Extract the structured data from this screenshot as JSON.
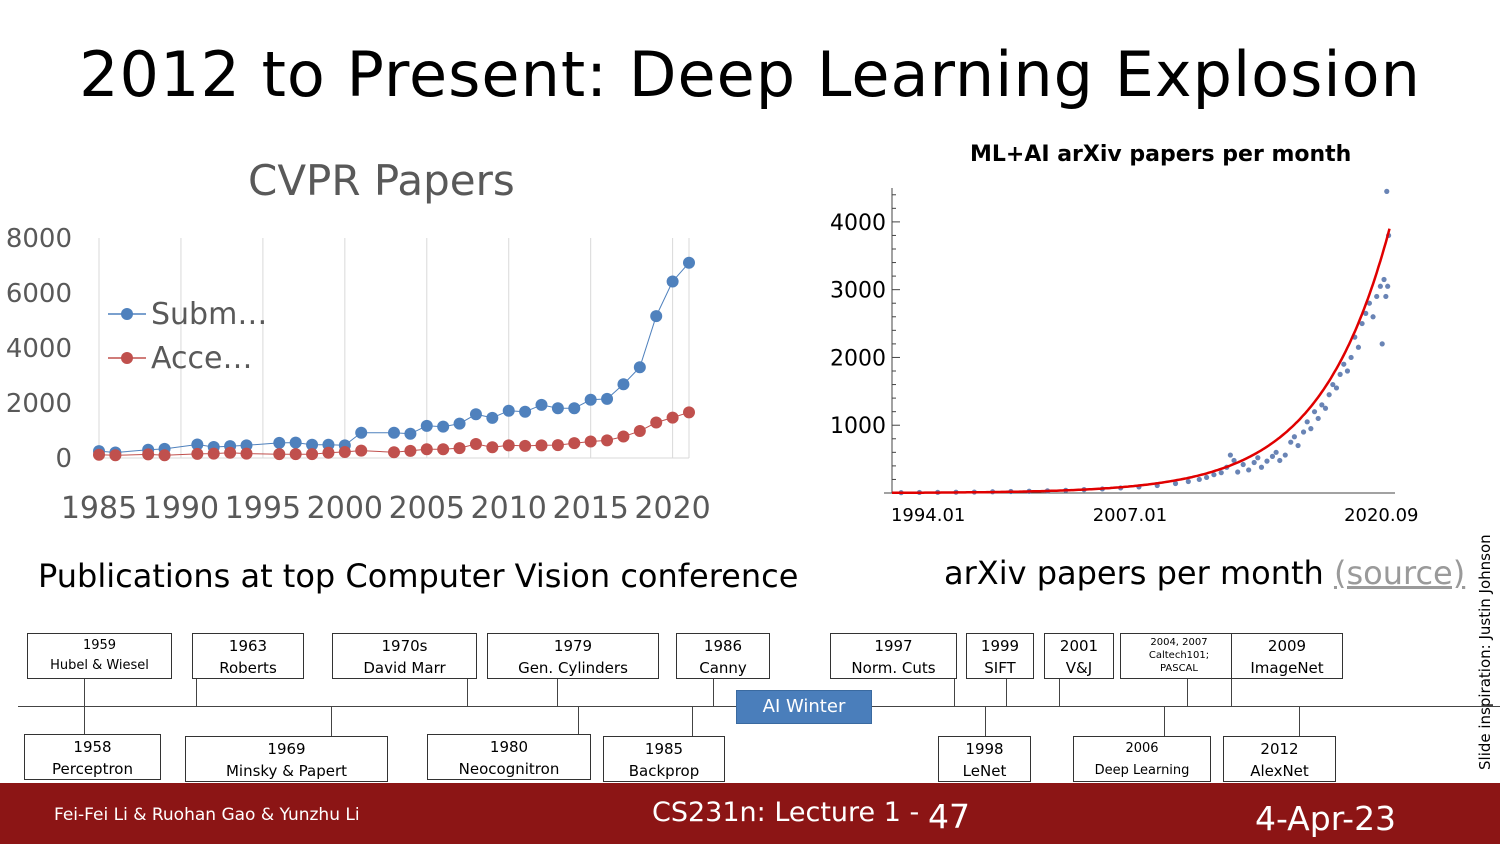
{
  "slide": {
    "title": "2012 to Present: Deep Learning Explosion",
    "caption_left": "Publications at top Computer Vision conference",
    "caption_right": "arXiv papers per month",
    "caption_right_link": "(source)",
    "credit": "Slide inspiration: Justin Johnson"
  },
  "chart_data": [
    {
      "type": "line",
      "title": "CVPR Papers",
      "xlabel": "",
      "ylabel": "",
      "x_ticks": [
        "1985",
        "1990",
        "1995",
        "2000",
        "2005",
        "2010",
        "2015",
        "2020"
      ],
      "y_ticks": [
        "0",
        "2000",
        "4000",
        "6000",
        "8000"
      ],
      "xlim": [
        1985,
        2021
      ],
      "ylim": [
        0,
        8000
      ],
      "legend_position": "left",
      "grid": "vertical",
      "series": [
        {
          "name": "Subm…",
          "color": "#4f81bd",
          "points": [
            [
              1985,
              250
            ],
            [
              1986,
              200
            ],
            [
              1988,
              300
            ],
            [
              1989,
              330
            ],
            [
              1991,
              490
            ],
            [
              1992,
              400
            ],
            [
              1993,
              430
            ],
            [
              1994,
              460
            ],
            [
              1996,
              550
            ],
            [
              1997,
              560
            ],
            [
              1998,
              480
            ],
            [
              1999,
              480
            ],
            [
              2000,
              460
            ],
            [
              2001,
              920
            ],
            [
              2003,
              920
            ],
            [
              2004,
              880
            ],
            [
              2005,
              1170
            ],
            [
              2006,
              1140
            ],
            [
              2007,
              1250
            ],
            [
              2008,
              1590
            ],
            [
              2009,
              1460
            ],
            [
              2010,
              1720
            ],
            [
              2011,
              1680
            ],
            [
              2012,
              1930
            ],
            [
              2013,
              1810
            ],
            [
              2014,
              1810
            ],
            [
              2015,
              2120
            ],
            [
              2016,
              2150
            ],
            [
              2017,
              2680
            ],
            [
              2018,
              3300
            ],
            [
              2019,
              5160
            ],
            [
              2020,
              6420
            ],
            [
              2021,
              7100
            ]
          ]
        },
        {
          "name": "Acce…",
          "color": "#c0504d",
          "points": [
            [
              1985,
              120
            ],
            [
              1986,
              100
            ],
            [
              1988,
              130
            ],
            [
              1989,
              100
            ],
            [
              1991,
              150
            ],
            [
              1992,
              160
            ],
            [
              1993,
              190
            ],
            [
              1994,
              160
            ],
            [
              1996,
              140
            ],
            [
              1997,
              140
            ],
            [
              1998,
              140
            ],
            [
              1999,
              190
            ],
            [
              2000,
              220
            ],
            [
              2001,
              270
            ],
            [
              2003,
              210
            ],
            [
              2004,
              260
            ],
            [
              2005,
              320
            ],
            [
              2006,
              320
            ],
            [
              2007,
              360
            ],
            [
              2008,
              510
            ],
            [
              2009,
              390
            ],
            [
              2010,
              460
            ],
            [
              2011,
              440
            ],
            [
              2012,
              460
            ],
            [
              2013,
              470
            ],
            [
              2014,
              540
            ],
            [
              2015,
              600
            ],
            [
              2016,
              640
            ],
            [
              2017,
              780
            ],
            [
              2018,
              980
            ],
            [
              2019,
              1290
            ],
            [
              2020,
              1470
            ],
            [
              2021,
              1660
            ]
          ]
        }
      ]
    },
    {
      "type": "scatter",
      "title": "ML+AI arXiv papers per month",
      "xlabel": "",
      "ylabel": "",
      "x_ticks": [
        "1994.01",
        "2007.01",
        "2020.09"
      ],
      "y_ticks": [
        "1000",
        "2000",
        "3000",
        "4000"
      ],
      "xlim": [
        1994.0,
        2021.5
      ],
      "ylim": [
        0,
        4500
      ],
      "fit_line": {
        "color": "#e00000",
        "model": "exponential",
        "value_at_2021_2": 3900
      },
      "series": [
        {
          "name": "",
          "color": "#4f6fa8",
          "points": [
            [
              1994.5,
              5
            ],
            [
              1995.5,
              8
            ],
            [
              1996.5,
              10
            ],
            [
              1997.5,
              12
            ],
            [
              1998.5,
              14
            ],
            [
              1999.5,
              18
            ],
            [
              2000.5,
              22
            ],
            [
              2001.5,
              26
            ],
            [
              2002.5,
              32
            ],
            [
              2003.5,
              40
            ],
            [
              2004.5,
              50
            ],
            [
              2005.5,
              60
            ],
            [
              2006.5,
              75
            ],
            [
              2007.5,
              90
            ],
            [
              2008.5,
              110
            ],
            [
              2009.5,
              140
            ],
            [
              2010.2,
              170
            ],
            [
              2010.8,
              200
            ],
            [
              2011.2,
              230
            ],
            [
              2011.6,
              270
            ],
            [
              2012.0,
              300
            ],
            [
              2012.3,
              380
            ],
            [
              2012.5,
              560
            ],
            [
              2012.7,
              480
            ],
            [
              2012.9,
              310
            ],
            [
              2013.2,
              420
            ],
            [
              2013.5,
              340
            ],
            [
              2013.8,
              450
            ],
            [
              2014.0,
              520
            ],
            [
              2014.2,
              380
            ],
            [
              2014.5,
              470
            ],
            [
              2014.8,
              540
            ],
            [
              2015.0,
              600
            ],
            [
              2015.2,
              480
            ],
            [
              2015.5,
              560
            ],
            [
              2015.8,
              750
            ],
            [
              2016.0,
              830
            ],
            [
              2016.2,
              700
            ],
            [
              2016.5,
              900
            ],
            [
              2016.7,
              1050
            ],
            [
              2016.9,
              950
            ],
            [
              2017.1,
              1200
            ],
            [
              2017.3,
              1100
            ],
            [
              2017.5,
              1300
            ],
            [
              2017.7,
              1250
            ],
            [
              2017.9,
              1450
            ],
            [
              2018.1,
              1600
            ],
            [
              2018.3,
              1550
            ],
            [
              2018.5,
              1750
            ],
            [
              2018.7,
              1900
            ],
            [
              2018.9,
              1800
            ],
            [
              2019.1,
              2000
            ],
            [
              2019.3,
              2300
            ],
            [
              2019.5,
              2150
            ],
            [
              2019.7,
              2500
            ],
            [
              2019.9,
              2650
            ],
            [
              2020.1,
              2800
            ],
            [
              2020.3,
              2600
            ],
            [
              2020.5,
              2900
            ],
            [
              2020.7,
              3050
            ],
            [
              2020.8,
              2200
            ],
            [
              2020.9,
              3150
            ],
            [
              2021.0,
              2900
            ],
            [
              2021.1,
              3050
            ],
            [
              2021.15,
              3800
            ],
            [
              2021.05,
              4450
            ]
          ]
        }
      ]
    }
  ],
  "timeline": {
    "top": [
      {
        "year": "1959",
        "label": "Hubel & Wiesel"
      },
      {
        "year": "1963",
        "label": "Roberts"
      },
      {
        "year": "1970s",
        "label": "David Marr"
      },
      {
        "year": "1979",
        "label": "Gen. Cylinders"
      },
      {
        "year": "1986",
        "label": "Canny"
      },
      {
        "year": "1997",
        "label": "Norm. Cuts"
      },
      {
        "year": "1999",
        "label": "SIFT"
      },
      {
        "year": "2001",
        "label": "V&J"
      },
      {
        "year": "2004, 2007",
        "label": "Caltech101;",
        "label2": "PASCAL"
      },
      {
        "year": "2009",
        "label": "ImageNet"
      }
    ],
    "bottom": [
      {
        "year": "1958",
        "label": "Perceptron"
      },
      {
        "year": "1969",
        "label": "Minsky & Papert"
      },
      {
        "year": "1980",
        "label": "Neocognitron"
      },
      {
        "year": "1985",
        "label": "Backprop"
      },
      {
        "year": "1998",
        "label": "LeNet"
      },
      {
        "year": "2006",
        "label": "Deep Learning"
      },
      {
        "year": "2012",
        "label": "AlexNet"
      }
    ],
    "ai_winter": "AI Winter"
  },
  "footer": {
    "authors": "Fei-Fei Li & Ruohan Gao & Yunzhu Li",
    "lecture": "CS231n: Lecture 1 -",
    "page": "47",
    "date": "4-Apr-23",
    "background": "#8c1515"
  }
}
